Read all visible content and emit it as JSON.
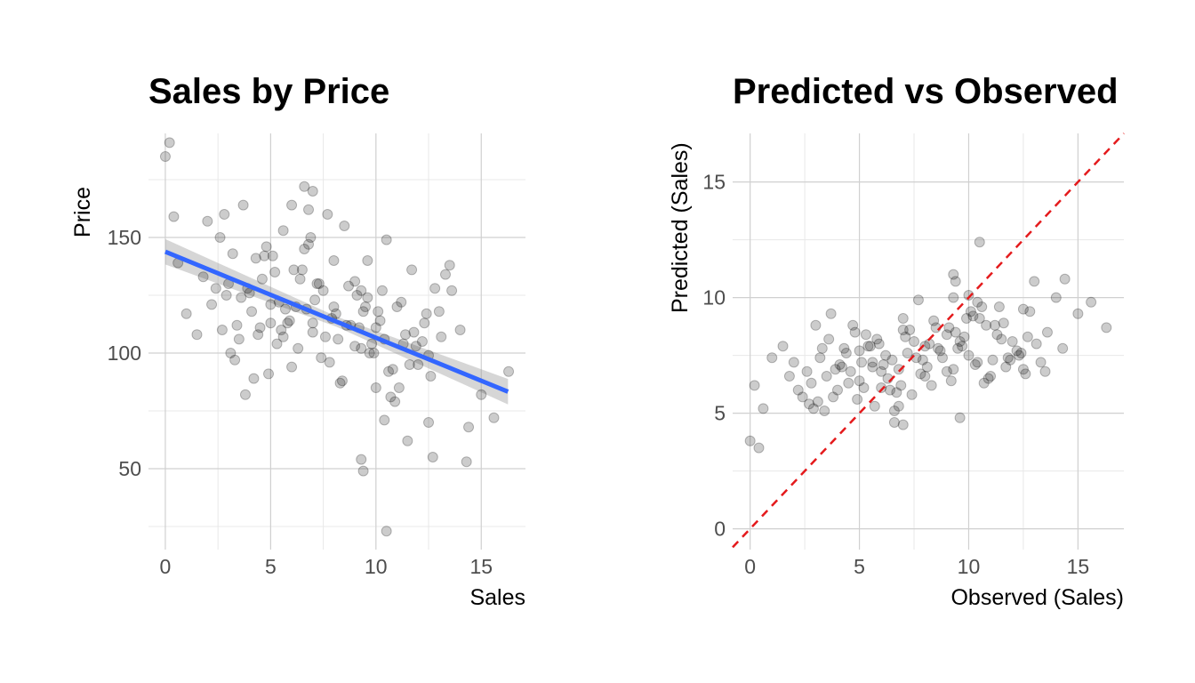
{
  "chart_data": [
    {
      "type": "scatter",
      "title": "Sales by Price",
      "xlabel": "Sales",
      "ylabel": "Price",
      "xlim": [
        -0.8,
        17.1
      ],
      "ylim": [
        15,
        195
      ],
      "xticks": [
        0,
        5,
        10,
        15
      ],
      "yticks": [
        50,
        100,
        150
      ],
      "grid": true,
      "legend": "none",
      "point_color": "#000000",
      "point_alpha": 0.2,
      "trend_line": {
        "method": "linear",
        "color": "#3366FF",
        "ribbon_color": "#999999",
        "x": [
          0,
          16.27
        ],
        "y": [
          143.8,
          83.3
        ]
      },
      "series": [
        {
          "x": [
            0,
            0.2,
            0.4,
            0.6,
            1.0,
            1.5,
            1.8,
            2.0,
            2.2,
            2.4,
            2.6,
            2.8,
            3.0,
            3.2,
            3.4,
            3.5,
            3.7,
            3.9,
            4.1,
            4.3,
            4.5,
            4.8,
            5.0,
            5.2,
            5.4,
            5.6,
            5.8,
            6.0,
            6.2,
            6.5,
            6.8,
            7.0,
            7.2,
            7.5,
            7.7,
            8.0,
            8.2,
            8.5,
            8.8,
            9.0,
            9.3,
            9.5,
            9.8,
            10.1,
            10.4,
            10.5,
            10.8,
            11.1,
            11.4,
            11.7,
            12.0,
            12.3,
            12.6,
            13.0,
            13.3,
            13.6,
            14.0,
            14.4,
            15.0,
            15.6,
            16.3,
            3.3,
            4.0,
            4.6,
            5.1,
            5.7,
            6.3,
            6.9,
            7.4,
            8.1,
            8.7,
            9.2,
            9.7,
            10.2,
            10.7,
            11.2,
            11.8,
            12.5,
            13.1,
            2.9,
            3.6,
            4.4,
            5.3,
            6.1,
            6.7,
            7.3,
            7.9,
            8.4,
            9.0,
            9.6,
            10.0,
            10.6,
            11.0,
            11.6,
            12.2,
            12.8,
            4.9,
            5.5,
            6.4,
            7.1,
            7.8,
            8.6,
            9.4,
            10.3,
            11.3,
            12.4,
            3.1,
            4.2,
            5.0,
            5.9,
            6.6,
            7.6,
            8.3,
            9.1,
            9.9,
            10.9,
            11.9,
            12.7,
            13.5,
            3.8,
            4.7,
            5.6,
            6.0,
            7.0,
            8.0,
            9.3,
            10.4,
            11.5,
            2.7,
            9.3,
            9.4,
            10.5,
            10.0,
            12.5,
            14.3,
            9.6,
            7.0,
            6.6,
            6.8
          ],
          "y": [
            185,
            191,
            159,
            139,
            117,
            108,
            133,
            157,
            121,
            128,
            150,
            160,
            130,
            143,
            112,
            106,
            164,
            128,
            118,
            141,
            111,
            146,
            113,
            135,
            122,
            153,
            113,
            164,
            120,
            136,
            147,
            109,
            130,
            127,
            160,
            120,
            106,
            155,
            112,
            103,
            102,
            120,
            104,
            118,
            71,
            149,
            93,
            85,
            108,
            136,
            95,
            113,
            90,
            118,
            134,
            127,
            110,
            68,
            82,
            72,
            92,
            97,
            126,
            132,
            142,
            119,
            102,
            150,
            98,
            117,
            129,
            111,
            100,
            114,
            81,
            122,
            109,
            99,
            107,
            125,
            124,
            108,
            104,
            136,
            119,
            130,
            115,
            88,
            131,
            124,
            111,
            92,
            120,
            95,
            105,
            128,
            91,
            110,
            132,
            123,
            96,
            112,
            118,
            127,
            104,
            117,
            100,
            89,
            121,
            114,
            145,
            107,
            87,
            125,
            100,
            79,
            103,
            55,
            138,
            82,
            142,
            107,
            94,
            113,
            140,
            127,
            106,
            62,
            110,
            54,
            49,
            23,
            85,
            70,
            53,
            140,
            170,
            172,
            162
          ]
        }
      ]
    },
    {
      "type": "scatter",
      "title": "Predicted vs Observed",
      "xlabel": "Observed (Sales)",
      "ylabel": "Predicted (Sales)",
      "xlim": [
        -0.8,
        17.1
      ],
      "ylim": [
        -0.9,
        17.1
      ],
      "xticks": [
        0,
        5,
        10,
        15
      ],
      "yticks": [
        0,
        5,
        10,
        15
      ],
      "grid": true,
      "legend": "none",
      "point_color": "#000000",
      "point_alpha": 0.2,
      "reference_line": {
        "slope": 1,
        "intercept": 0,
        "color": "#E41A1C",
        "style": "dashed"
      },
      "series": [
        {
          "x": [
            0,
            0.2,
            0.4,
            0.6,
            1.0,
            1.5,
            1.8,
            2.0,
            2.2,
            2.4,
            2.6,
            2.8,
            3.0,
            3.2,
            3.4,
            3.5,
            3.7,
            3.9,
            4.1,
            4.3,
            4.5,
            4.8,
            5.0,
            5.2,
            5.4,
            5.6,
            5.8,
            6.0,
            6.2,
            6.5,
            6.8,
            7.0,
            7.2,
            7.5,
            7.7,
            8.0,
            8.2,
            8.5,
            8.8,
            9.0,
            9.3,
            9.5,
            9.8,
            10.1,
            10.4,
            10.5,
            10.8,
            11.1,
            11.4,
            11.7,
            12.0,
            12.3,
            12.6,
            13.0,
            13.3,
            13.6,
            14.0,
            14.4,
            15.0,
            15.6,
            16.3,
            3.3,
            4.0,
            4.6,
            5.1,
            5.7,
            6.3,
            6.9,
            7.4,
            8.1,
            8.7,
            9.2,
            9.7,
            10.2,
            10.7,
            11.2,
            11.8,
            12.5,
            13.1,
            2.9,
            3.6,
            4.4,
            5.3,
            6.1,
            6.7,
            7.3,
            7.9,
            8.4,
            9.0,
            9.6,
            10.0,
            10.6,
            11.0,
            11.6,
            12.2,
            12.8,
            4.9,
            5.5,
            6.4,
            7.1,
            7.8,
            8.6,
            9.4,
            10.3,
            11.3,
            12.4,
            3.1,
            4.2,
            5.0,
            5.9,
            6.6,
            7.6,
            8.3,
            9.1,
            9.9,
            10.9,
            11.9,
            12.7,
            13.5,
            3.8,
            4.7,
            5.6,
            6.0,
            7.0,
            8.0,
            9.3,
            10.4,
            11.5,
            2.7,
            9.3,
            9.4,
            10.5,
            10.0,
            12.5,
            14.3,
            9.6,
            7.0,
            6.6,
            6.8
          ],
          "y": [
            3.8,
            6.2,
            3.5,
            5.2,
            7.4,
            7.9,
            6.6,
            7.2,
            6.0,
            5.7,
            6.8,
            6.3,
            8.8,
            7.4,
            5.1,
            6.6,
            9.3,
            6.9,
            7.1,
            7.8,
            6.3,
            8.5,
            7.7,
            6.1,
            7.9,
            7.0,
            8.2,
            6.8,
            7.5,
            7.3,
            6.9,
            9.1,
            7.6,
            8.1,
            9.9,
            6.6,
            8.0,
            8.7,
            7.4,
            8.4,
            10.0,
            7.8,
            8.3,
            9.4,
            7.2,
            12.4,
            8.8,
            7.3,
            9.6,
            7.0,
            8.1,
            7.5,
            6.7,
            10.7,
            7.2,
            8.5,
            10.0,
            10.8,
            9.3,
            9.8,
            8.7,
            7.8,
            6.0,
            6.8,
            7.2,
            5.3,
            6.5,
            6.2,
            5.8,
            7.0,
            7.7,
            6.4,
            7.9,
            9.2,
            6.3,
            8.8,
            7.4,
            6.9,
            8.0,
            5.2,
            8.2,
            7.6,
            8.4,
            7.1,
            5.9,
            8.6,
            7.3,
            9.0,
            6.8,
            8.1,
            7.5,
            9.6,
            6.6,
            8.9,
            7.7,
            9.4,
            5.6,
            7.9,
            6.0,
            8.3,
            6.7,
            7.8,
            8.5,
            7.1,
            8.4,
            7.6,
            5.5,
            7.0,
            6.4,
            8.0,
            5.1,
            7.4,
            6.2,
            8.7,
            9.1,
            6.5,
            7.3,
            8.3,
            6.8,
            5.7,
            8.8,
            7.2,
            6.1,
            8.6,
            7.9,
            6.9,
            9.8,
            8.2,
            5.4,
            11.0,
            10.7,
            9.1,
            10.1,
            9.5,
            7.8,
            4.8,
            4.5,
            4.6,
            5.3
          ]
        }
      ]
    }
  ]
}
